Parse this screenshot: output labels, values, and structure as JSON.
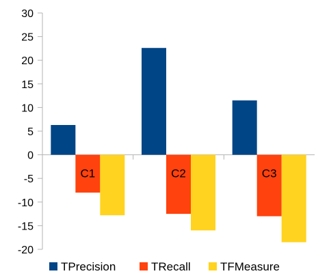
{
  "chart_data": {
    "type": "bar",
    "title": "",
    "xlabel": "",
    "ylabel": "",
    "categories": [
      "C1",
      "C2",
      "C3"
    ],
    "ylim": [
      -20,
      30
    ],
    "ytick_step": 5,
    "grid": false,
    "legend_position": "bottom",
    "series": [
      {
        "name": "TPrecision",
        "color": "#004586",
        "values": [
          6.3,
          22.6,
          11.5
        ]
      },
      {
        "name": "TRecall",
        "color": "#ff420e",
        "values": [
          -8.0,
          -12.5,
          -13.0
        ]
      },
      {
        "name": "TFMeasure",
        "color": "#ffd320",
        "values": [
          -12.8,
          -16.0,
          -18.5
        ]
      }
    ]
  }
}
